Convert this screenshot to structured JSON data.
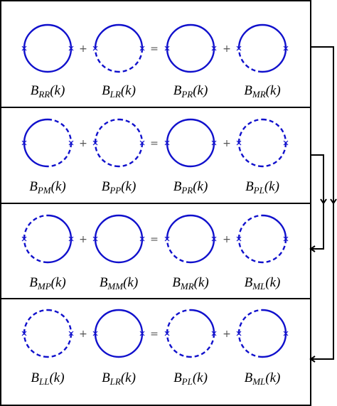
{
  "rows": [
    {
      "terms": [
        {
          "symbol": "B",
          "subscript": "RR",
          "argument": "(k)"
        },
        {
          "symbol": "B",
          "subscript": "LR",
          "argument": "(k)"
        },
        {
          "symbol": "B",
          "subscript": "PR",
          "argument": "(k)"
        },
        {
          "symbol": "B",
          "subscript": "MR",
          "argument": "(k)"
        }
      ],
      "operators": [
        "+",
        "=",
        "+"
      ]
    },
    {
      "terms": [
        {
          "symbol": "B",
          "subscript": "PM",
          "argument": "(k)"
        },
        {
          "symbol": "B",
          "subscript": "PP",
          "argument": "(k)"
        },
        {
          "symbol": "B",
          "subscript": "PR",
          "argument": "(k)"
        },
        {
          "symbol": "B",
          "subscript": "PL",
          "argument": "(k)"
        }
      ],
      "operators": [
        "+",
        "=",
        "+"
      ]
    },
    {
      "terms": [
        {
          "symbol": "B",
          "subscript": "MP",
          "argument": "(k)"
        },
        {
          "symbol": "B",
          "subscript": "MM",
          "argument": "(k)"
        },
        {
          "symbol": "B",
          "subscript": "MR",
          "argument": "(k)"
        },
        {
          "symbol": "B",
          "subscript": "ML",
          "argument": "(k)"
        }
      ],
      "operators": [
        "+",
        "=",
        "+"
      ]
    },
    {
      "terms": [
        {
          "symbol": "B",
          "subscript": "LL",
          "argument": "(k)"
        },
        {
          "symbol": "B",
          "subscript": "LR",
          "argument": "(k)"
        },
        {
          "symbol": "B",
          "subscript": "PL",
          "argument": "(k)"
        },
        {
          "symbol": "B",
          "subscript": "ML",
          "argument": "(k)"
        }
      ],
      "operators": [
        "+",
        "=",
        "+"
      ]
    }
  ]
}
